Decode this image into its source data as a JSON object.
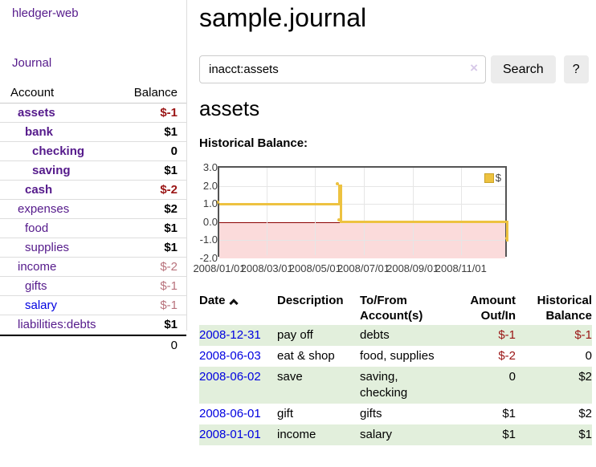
{
  "app": {
    "brand": "hledger-web"
  },
  "colors": {
    "visited_link": "#551a8b",
    "unvisited_link": "#0000e0",
    "negative": "#9a1414",
    "negative_muted": "#b8727c",
    "positive": "#000000",
    "row_shade_green": "#e2efdc",
    "series_gold": "#edc240",
    "negative_region_pink": "#fbdbdb",
    "zero_line": "#8b0000"
  },
  "sidebar": {
    "journal_link": "Journal",
    "table": {
      "headers": {
        "account": "Account",
        "balance": "Balance"
      },
      "accounts": [
        {
          "name": "assets",
          "level": 1,
          "bold": true,
          "link_color": "visited",
          "balance": "$-1",
          "balance_color": "negative",
          "balance_bold": true
        },
        {
          "name": "bank",
          "level": 2,
          "bold": true,
          "link_color": "visited",
          "balance": "$1",
          "balance_color": "positive",
          "balance_bold": true
        },
        {
          "name": "checking",
          "level": 3,
          "bold": true,
          "link_color": "visited",
          "balance": "0",
          "balance_color": "positive",
          "balance_bold": true
        },
        {
          "name": "saving",
          "level": 3,
          "bold": true,
          "link_color": "visited",
          "balance": "$1",
          "balance_color": "positive",
          "balance_bold": true
        },
        {
          "name": "cash",
          "level": 2,
          "bold": true,
          "link_color": "visited",
          "balance": "$-2",
          "balance_color": "negative",
          "balance_bold": true
        },
        {
          "name": "expenses",
          "level": 1,
          "bold": false,
          "link_color": "visited",
          "balance": "$2",
          "balance_color": "positive",
          "balance_bold": true
        },
        {
          "name": "food",
          "level": 2,
          "bold": false,
          "link_color": "visited",
          "balance": "$1",
          "balance_color": "positive",
          "balance_bold": true
        },
        {
          "name": "supplies",
          "level": 2,
          "bold": false,
          "link_color": "visited",
          "balance": "$1",
          "balance_color": "positive",
          "balance_bold": true
        },
        {
          "name": "income",
          "level": 1,
          "bold": false,
          "link_color": "visited",
          "balance": "$-2",
          "balance_color": "negative_muted",
          "balance_bold": false
        },
        {
          "name": "gifts",
          "level": 2,
          "bold": false,
          "link_color": "visited",
          "balance": "$-1",
          "balance_color": "negative_muted",
          "balance_bold": false
        },
        {
          "name": "salary",
          "level": 2,
          "bold": false,
          "link_color": "unvisited",
          "balance": "$-1",
          "balance_color": "negative_muted",
          "balance_bold": false
        },
        {
          "name": "liabilities:debts",
          "level": 1,
          "bold": false,
          "link_color": "visited",
          "balance": "$1",
          "balance_color": "positive",
          "balance_bold": true
        }
      ],
      "total": "0"
    }
  },
  "header": {
    "title": "sample.journal"
  },
  "search": {
    "value": "inacct:assets",
    "clear_icon": "×",
    "button": "Search",
    "help_button": "?"
  },
  "account_page": {
    "heading": "assets",
    "chart_label": "Historical Balance:"
  },
  "chart_data": {
    "type": "line",
    "step": true,
    "title": "Historical Balance",
    "series": [
      {
        "name": "$",
        "color": "#edc240",
        "points": [
          {
            "date": "2008-01-01",
            "value": 1
          },
          {
            "date": "2008-06-01",
            "value": 2
          },
          {
            "date": "2008-06-03",
            "value": 0
          },
          {
            "date": "2008-12-31",
            "value": -1
          }
        ]
      }
    ],
    "ylim": [
      -2,
      3
    ],
    "y_ticks": [
      "3.0",
      "2.0",
      "1.0",
      "0.0",
      "-1.0",
      "-2.0"
    ],
    "x_ticks": [
      "2008/01/01",
      "2008/03/01",
      "2008/05/01",
      "2008/07/01",
      "2008/09/01",
      "2008/11/01"
    ],
    "x_range": [
      "2008-01-01",
      "2008-12-31"
    ],
    "grid": true,
    "legend_position": "top-right"
  },
  "register": {
    "headers": [
      "Date",
      "Description",
      "To/From\nAccount(s)",
      "Amount\nOut/In",
      "Historical\nBalance"
    ],
    "rows": [
      {
        "date": "2008-12-31",
        "description": "pay off",
        "accounts": "debts",
        "amount": "$-1",
        "amount_negative": true,
        "balance": "$-1",
        "balance_negative": true,
        "shaded": true
      },
      {
        "date": "2008-06-03",
        "description": "eat & shop",
        "accounts": "food, supplies",
        "amount": "$-2",
        "amount_negative": true,
        "balance": "0",
        "balance_negative": false,
        "shaded": false
      },
      {
        "date": "2008-06-02",
        "description": "save",
        "accounts": "saving,\nchecking",
        "amount": "0",
        "amount_negative": false,
        "balance": "$2",
        "balance_negative": false,
        "shaded": true
      },
      {
        "date": "2008-06-01",
        "description": "gift",
        "accounts": "gifts",
        "amount": "$1",
        "amount_negative": false,
        "balance": "$2",
        "balance_negative": false,
        "shaded": false
      },
      {
        "date": "2008-01-01",
        "description": "income",
        "accounts": "salary",
        "amount": "$1",
        "amount_negative": false,
        "balance": "$1",
        "balance_negative": false,
        "shaded": true
      }
    ]
  }
}
